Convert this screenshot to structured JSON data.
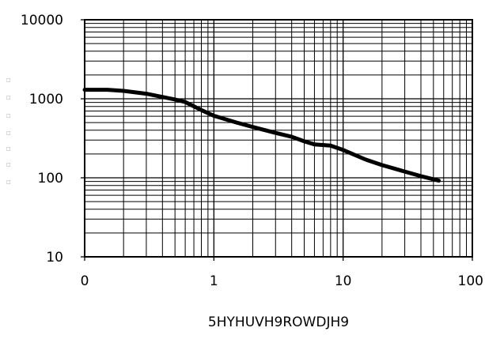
{
  "chart_data": {
    "type": "line",
    "x_scale": "log",
    "y_scale": "log",
    "xlim": [
      0.1,
      100
    ],
    "ylim": [
      10,
      10000
    ],
    "x_ticks": [
      0.1,
      1,
      10,
      100
    ],
    "x_tick_labels": [
      "0",
      "1",
      "10",
      "100"
    ],
    "y_ticks": [
      10,
      100,
      1000,
      10000
    ],
    "y_tick_labels": [
      "10",
      "100",
      "1000",
      "10000"
    ],
    "xlabel": "5HYHUVH9ROWDJH9",
    "ylabel": "",
    "grid": true,
    "side_marks": [
      "□",
      "□",
      "□",
      "□",
      "□",
      "□",
      "□"
    ],
    "series": [
      {
        "x": [
          0.1,
          0.15,
          0.2,
          0.3,
          0.5,
          0.6,
          0.8,
          1,
          1.5,
          2,
          3,
          4,
          5,
          6,
          8,
          10,
          15,
          20,
          30,
          40,
          55
        ],
        "y": [
          1300,
          1300,
          1260,
          1160,
          980,
          910,
          720,
          610,
          500,
          440,
          370,
          330,
          290,
          265,
          255,
          225,
          170,
          145,
          120,
          105,
          92
        ]
      }
    ]
  }
}
